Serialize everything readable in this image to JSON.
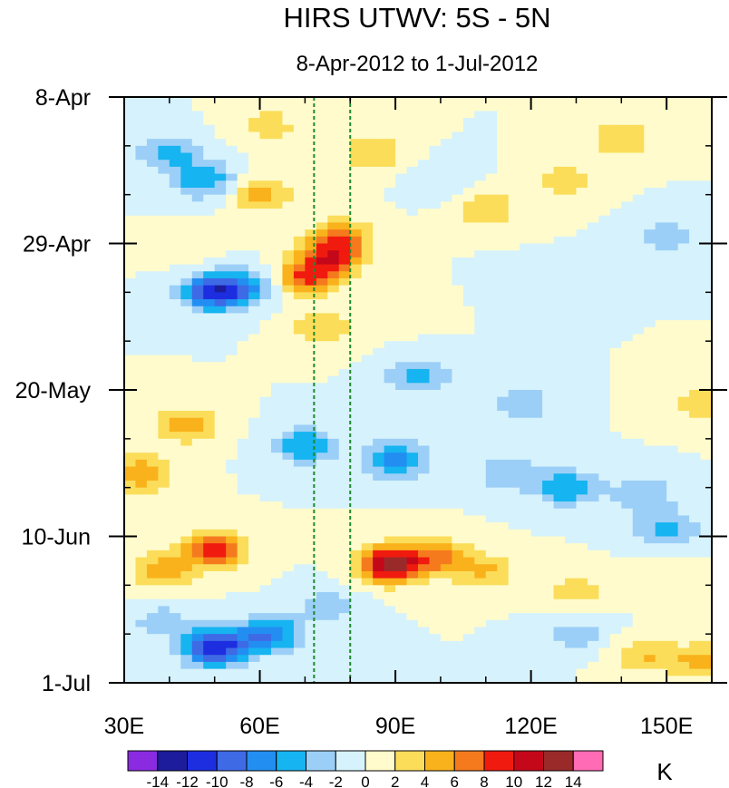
{
  "chart_data": {
    "type": "heatmap",
    "title": "HIRS UTWV: 5S - 5N",
    "subtitle": "8-Apr-2012 to 1-Jul-2012",
    "x_range": [
      30,
      160
    ],
    "x_ticks": [
      {
        "value": 30,
        "label": "30E"
      },
      {
        "value": 60,
        "label": "60E"
      },
      {
        "value": 90,
        "label": "90E"
      },
      {
        "value": 120,
        "label": "120E"
      },
      {
        "value": 150,
        "label": "150E"
      }
    ],
    "y_range": [
      "2012-04-08",
      "2012-07-01"
    ],
    "y_ticks": [
      {
        "date": "2012-04-08",
        "label": "8-Apr"
      },
      {
        "date": "2012-04-29",
        "label": "29-Apr"
      },
      {
        "date": "2012-05-20",
        "label": "20-May"
      },
      {
        "date": "2012-06-10",
        "label": "10-Jun"
      },
      {
        "date": "2012-07-01",
        "label": "1-Jul"
      }
    ],
    "colorbar": {
      "unit": "K",
      "levels": [
        -14,
        -12,
        -10,
        -8,
        -6,
        -4,
        -2,
        0,
        2,
        4,
        6,
        8,
        10,
        12,
        14
      ],
      "labels": [
        "-14",
        "-12",
        "-10",
        "-8",
        "-6",
        "-4",
        "-2",
        "0",
        "2",
        "4",
        "6",
        "8",
        "10",
        "12",
        "14"
      ],
      "colors": [
        "#8a2be2",
        "#1c1c9c",
        "#1d2ee0",
        "#3e6ae6",
        "#238ef2",
        "#16b4f0",
        "#9ccff7",
        "#d6f2fc",
        "#fffbcc",
        "#fbdd5a",
        "#f9b21b",
        "#f57a1e",
        "#f01a0f",
        "#c4081a",
        "#9a2a2a",
        "#ff6bb4"
      ]
    },
    "reference_lines": [
      {
        "x": 72,
        "color": "#1e8a2e",
        "style": "dashed"
      },
      {
        "x": 80,
        "color": "#1e8a2e",
        "style": "dashed"
      }
    ],
    "features": [
      {
        "lon": 40,
        "date": "2012-04-16",
        "value": -5
      },
      {
        "lon": 62,
        "date": "2012-04-12",
        "value": 3
      },
      {
        "lon": 85,
        "date": "2012-04-16",
        "value": 4
      },
      {
        "lon": 60,
        "date": "2012-04-22",
        "value": 5
      },
      {
        "lon": 48,
        "date": "2012-04-20",
        "value": -6
      },
      {
        "lon": 45,
        "date": "2012-04-30",
        "value": 1
      },
      {
        "lon": 78,
        "date": "2012-04-28",
        "value": 6
      },
      {
        "lon": 76,
        "date": "2012-05-01",
        "value": 8
      },
      {
        "lon": 70,
        "date": "2012-05-04",
        "value": 8
      },
      {
        "lon": 74,
        "date": "2012-05-11",
        "value": 4
      },
      {
        "lon": 50,
        "date": "2012-05-06",
        "value": -11
      },
      {
        "lon": 58,
        "date": "2012-05-05",
        "value": -5
      },
      {
        "lon": 90,
        "date": "2012-05-08",
        "value": 2
      },
      {
        "lon": 110,
        "date": "2012-04-24",
        "value": 4
      },
      {
        "lon": 128,
        "date": "2012-04-20",
        "value": 3
      },
      {
        "lon": 140,
        "date": "2012-04-14",
        "value": 4
      },
      {
        "lon": 150,
        "date": "2012-04-28",
        "value": -3
      },
      {
        "lon": 95,
        "date": "2012-05-18",
        "value": -5
      },
      {
        "lon": 118,
        "date": "2012-05-22",
        "value": -4
      },
      {
        "lon": 44,
        "date": "2012-05-25",
        "value": 5
      },
      {
        "lon": 34,
        "date": "2012-06-01",
        "value": 6
      },
      {
        "lon": 70,
        "date": "2012-05-28",
        "value": -6
      },
      {
        "lon": 90,
        "date": "2012-05-30",
        "value": -7
      },
      {
        "lon": 115,
        "date": "2012-06-01",
        "value": -4
      },
      {
        "lon": 128,
        "date": "2012-06-03",
        "value": -6
      },
      {
        "lon": 145,
        "date": "2012-06-04",
        "value": -4
      },
      {
        "lon": 158,
        "date": "2012-05-22",
        "value": 4
      },
      {
        "lon": 50,
        "date": "2012-06-12",
        "value": 9
      },
      {
        "lon": 38,
        "date": "2012-06-15",
        "value": 5
      },
      {
        "lon": 89,
        "date": "2012-06-14",
        "value": 13
      },
      {
        "lon": 100,
        "date": "2012-06-13",
        "value": 6
      },
      {
        "lon": 110,
        "date": "2012-06-15",
        "value": 4
      },
      {
        "lon": 130,
        "date": "2012-06-18",
        "value": 3
      },
      {
        "lon": 150,
        "date": "2012-06-16",
        "value": 2
      },
      {
        "lon": 50,
        "date": "2012-06-26",
        "value": -12
      },
      {
        "lon": 62,
        "date": "2012-06-24",
        "value": -8
      },
      {
        "lon": 38,
        "date": "2012-06-22",
        "value": -3
      },
      {
        "lon": 75,
        "date": "2012-06-20",
        "value": -3
      },
      {
        "lon": 130,
        "date": "2012-06-24",
        "value": -3
      },
      {
        "lon": 145,
        "date": "2012-06-27",
        "value": 4
      },
      {
        "lon": 158,
        "date": "2012-06-28",
        "value": 5
      },
      {
        "lon": 150,
        "date": "2012-06-09",
        "value": -5
      },
      {
        "lon": 120,
        "date": "2012-05-05",
        "value": -2
      },
      {
        "lon": 100,
        "date": "2012-04-20",
        "value": -2
      }
    ]
  }
}
